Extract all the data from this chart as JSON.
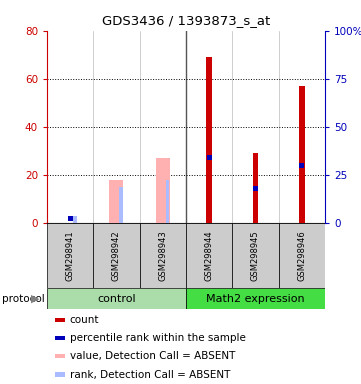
{
  "title": "GDS3436 / 1393873_s_at",
  "samples": [
    "GSM298941",
    "GSM298942",
    "GSM298943",
    "GSM298944",
    "GSM298945",
    "GSM298946"
  ],
  "ylim_left": [
    0,
    80
  ],
  "ylim_right": [
    0,
    100
  ],
  "yticks_left": [
    0,
    20,
    40,
    60,
    80
  ],
  "yticks_right": [
    0,
    25,
    50,
    75,
    100
  ],
  "red_bars": [
    0,
    0,
    0,
    69,
    29,
    57
  ],
  "pink_bars": [
    0,
    18,
    27,
    0,
    0,
    0
  ],
  "blue_vals": [
    2,
    0,
    0,
    34,
    18,
    30
  ],
  "light_blue_vals": [
    2,
    15,
    18,
    0,
    0,
    0
  ],
  "red_color": "#CC0000",
  "pink_color": "#FFB0B0",
  "blue_color": "#0000BB",
  "light_blue_color": "#AABBFF",
  "grid_color": "#000000",
  "sample_bg": "#CCCCCC",
  "control_color": "#AADDAA",
  "math2_color": "#44DD44",
  "legend_items": [
    {
      "color": "#CC0000",
      "label": "count"
    },
    {
      "color": "#0000BB",
      "label": "percentile rank within the sample"
    },
    {
      "color": "#FFB0B0",
      "label": "value, Detection Call = ABSENT"
    },
    {
      "color": "#AABBFF",
      "label": "rank, Detection Call = ABSENT"
    }
  ]
}
